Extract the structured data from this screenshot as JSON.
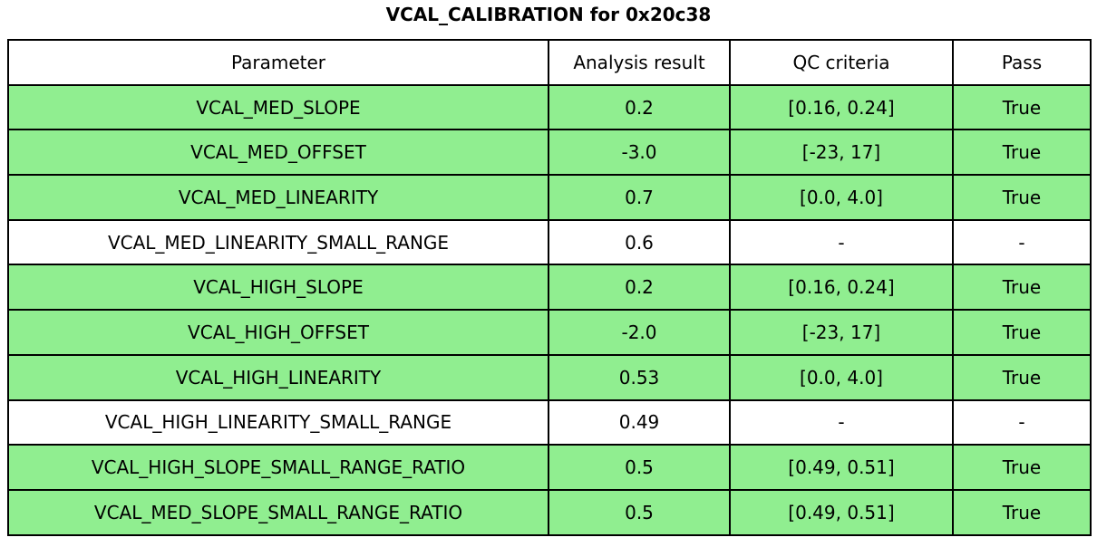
{
  "chart_data": {
    "type": "table",
    "title": "VCAL_CALIBRATION for 0x20c38",
    "columns": [
      "Parameter",
      "Analysis result",
      "QC criteria",
      "Pass"
    ],
    "rows": [
      {
        "parameter": "VCAL_MED_SLOPE",
        "analysis_result": "0.2",
        "qc_criteria": "[0.16, 0.24]",
        "pass": "True",
        "passed": true
      },
      {
        "parameter": "VCAL_MED_OFFSET",
        "analysis_result": "-3.0",
        "qc_criteria": "[-23, 17]",
        "pass": "True",
        "passed": true
      },
      {
        "parameter": "VCAL_MED_LINEARITY",
        "analysis_result": "0.7",
        "qc_criteria": "[0.0, 4.0]",
        "pass": "True",
        "passed": true
      },
      {
        "parameter": "VCAL_MED_LINEARITY_SMALL_RANGE",
        "analysis_result": "0.6",
        "qc_criteria": "-",
        "pass": "-",
        "passed": false
      },
      {
        "parameter": "VCAL_HIGH_SLOPE",
        "analysis_result": "0.2",
        "qc_criteria": "[0.16, 0.24]",
        "pass": "True",
        "passed": true
      },
      {
        "parameter": "VCAL_HIGH_OFFSET",
        "analysis_result": "-2.0",
        "qc_criteria": "[-23, 17]",
        "pass": "True",
        "passed": true
      },
      {
        "parameter": "VCAL_HIGH_LINEARITY",
        "analysis_result": "0.53",
        "qc_criteria": "[0.0, 4.0]",
        "pass": "True",
        "passed": true
      },
      {
        "parameter": "VCAL_HIGH_LINEARITY_SMALL_RANGE",
        "analysis_result": "0.49",
        "qc_criteria": "-",
        "pass": "-",
        "passed": false
      },
      {
        "parameter": "VCAL_HIGH_SLOPE_SMALL_RANGE_RATIO",
        "analysis_result": "0.5",
        "qc_criteria": "[0.49, 0.51]",
        "pass": "True",
        "passed": true
      },
      {
        "parameter": "VCAL_MED_SLOPE_SMALL_RANGE_RATIO",
        "analysis_result": "0.5",
        "qc_criteria": "[0.49, 0.51]",
        "pass": "True",
        "passed": true
      }
    ],
    "colors": {
      "pass_row_background": "#90ee90",
      "no_criteria_row_background": "#ffffff",
      "border": "#000000",
      "text": "#000000"
    },
    "layout": {
      "grid": "on",
      "header_background": "#ffffff"
    }
  }
}
